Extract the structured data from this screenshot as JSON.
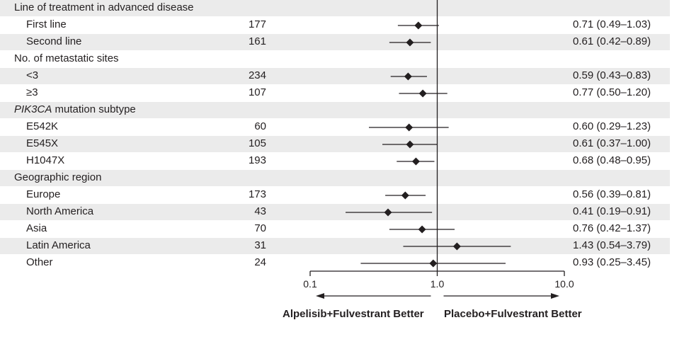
{
  "chart_data": {
    "type": "forest",
    "x_scale": "log",
    "xlim": [
      0.1,
      10.0
    ],
    "x_ticks": [
      "0.1",
      "1.0",
      "10.0"
    ],
    "reference_line": 1.0,
    "left_direction_label": "Alpelisib+Fulvestrant Better",
    "right_direction_label": "Placebo+Fulvestrant Better",
    "rows": [
      {
        "kind": "group",
        "label": "Line of treatment in advanced disease"
      },
      {
        "kind": "subgroup",
        "label": "First line",
        "n": "177",
        "hr": 0.71,
        "lo": 0.49,
        "hi": 1.03,
        "text": "0.71 (0.49–1.03)"
      },
      {
        "kind": "subgroup",
        "label": "Second line",
        "n": "161",
        "hr": 0.61,
        "lo": 0.42,
        "hi": 0.89,
        "text": "0.61 (0.42–0.89)"
      },
      {
        "kind": "group",
        "label": "No. of metastatic sites"
      },
      {
        "kind": "subgroup",
        "label": "<3",
        "n": "234",
        "hr": 0.59,
        "lo": 0.43,
        "hi": 0.83,
        "text": "0.59 (0.43–0.83)"
      },
      {
        "kind": "subgroup",
        "label": "≥3",
        "n": "107",
        "hr": 0.77,
        "lo": 0.5,
        "hi": 1.2,
        "text": "0.77 (0.50–1.20)"
      },
      {
        "kind": "group",
        "label": "mutation subtype",
        "italic_prefix": "PIK3CA"
      },
      {
        "kind": "subgroup",
        "label": "E542K",
        "n": "60",
        "hr": 0.6,
        "lo": 0.29,
        "hi": 1.23,
        "text": "0.60 (0.29–1.23)"
      },
      {
        "kind": "subgroup",
        "label": "E545X",
        "n": "105",
        "hr": 0.61,
        "lo": 0.37,
        "hi": 1.0,
        "text": "0.61 (0.37–1.00)"
      },
      {
        "kind": "subgroup",
        "label": "H1047X",
        "n": "193",
        "hr": 0.68,
        "lo": 0.48,
        "hi": 0.95,
        "text": "0.68 (0.48–0.95)"
      },
      {
        "kind": "group",
        "label": "Geographic region"
      },
      {
        "kind": "subgroup",
        "label": "Europe",
        "n": "173",
        "hr": 0.56,
        "lo": 0.39,
        "hi": 0.81,
        "text": "0.56 (0.39–0.81)"
      },
      {
        "kind": "subgroup",
        "label": "North America",
        "n": "43",
        "hr": 0.41,
        "lo": 0.19,
        "hi": 0.91,
        "text": "0.41 (0.19–0.91)"
      },
      {
        "kind": "subgroup",
        "label": "Asia",
        "n": "70",
        "hr": 0.76,
        "lo": 0.42,
        "hi": 1.37,
        "text": "0.76 (0.42–1.37)"
      },
      {
        "kind": "subgroup",
        "label": "Latin America",
        "n": "31",
        "hr": 1.43,
        "lo": 0.54,
        "hi": 3.79,
        "text": "1.43 (0.54–3.79)"
      },
      {
        "kind": "subgroup",
        "label": "Other",
        "n": "24",
        "hr": 0.93,
        "lo": 0.25,
        "hi": 3.45,
        "text": "0.93 (0.25–3.45)"
      }
    ]
  },
  "colors": {
    "shade": "#ebebeb",
    "ink": "#231f20"
  }
}
